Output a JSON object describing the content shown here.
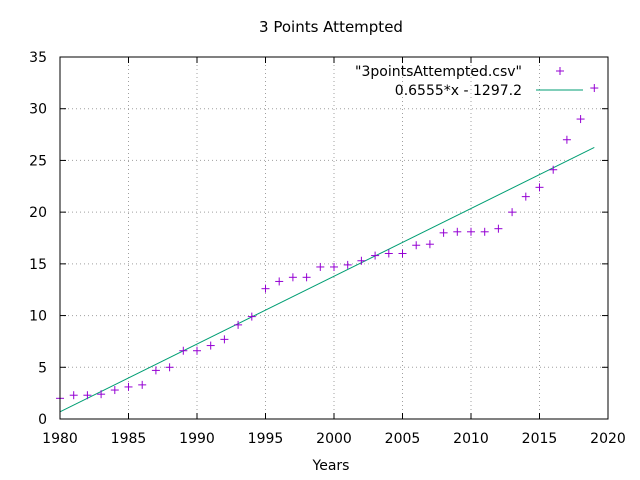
{
  "chart_data": {
    "type": "scatter",
    "title": "3 Points Attempted",
    "xlabel": "Years",
    "ylabel": "",
    "xlim": [
      1980,
      2020
    ],
    "ylim": [
      0,
      35
    ],
    "xticks": [
      1980,
      1985,
      1990,
      1995,
      2000,
      2005,
      2010,
      2015,
      2020
    ],
    "yticks": [
      0,
      5,
      10,
      15,
      20,
      25,
      30,
      35
    ],
    "grid": true,
    "legend_position": "top-right",
    "series": [
      {
        "name": "\"3pointsAttempted.csv\"",
        "type": "scatter",
        "marker": "+",
        "color": "#9400d3",
        "x": [
          1980,
          1981,
          1982,
          1983,
          1984,
          1985,
          1986,
          1987,
          1988,
          1989,
          1990,
          1991,
          1992,
          1993,
          1994,
          1995,
          1996,
          1997,
          1998,
          1999,
          2000,
          2001,
          2002,
          2003,
          2004,
          2005,
          2006,
          2007,
          2008,
          2009,
          2010,
          2011,
          2012,
          2013,
          2014,
          2015,
          2016,
          2017,
          2018,
          2019
        ],
        "y": [
          2.0,
          2.3,
          2.3,
          2.4,
          2.8,
          3.1,
          3.3,
          4.7,
          5.0,
          6.6,
          6.6,
          7.1,
          7.7,
          9.1,
          9.9,
          12.6,
          13.3,
          13.7,
          13.7,
          14.7,
          14.7,
          14.9,
          15.3,
          15.8,
          16.0,
          16.0,
          16.8,
          16.9,
          18.0,
          18.1,
          18.1,
          18.1,
          18.4,
          20.0,
          21.5,
          22.4,
          24.1,
          27.0,
          29.0,
          32.0
        ]
      },
      {
        "name": "0.6555*x - 1297.2",
        "type": "line",
        "color": "#009e73",
        "slope": 0.6555,
        "intercept": -1297.2,
        "x_range": [
          1980,
          2019
        ]
      }
    ]
  }
}
